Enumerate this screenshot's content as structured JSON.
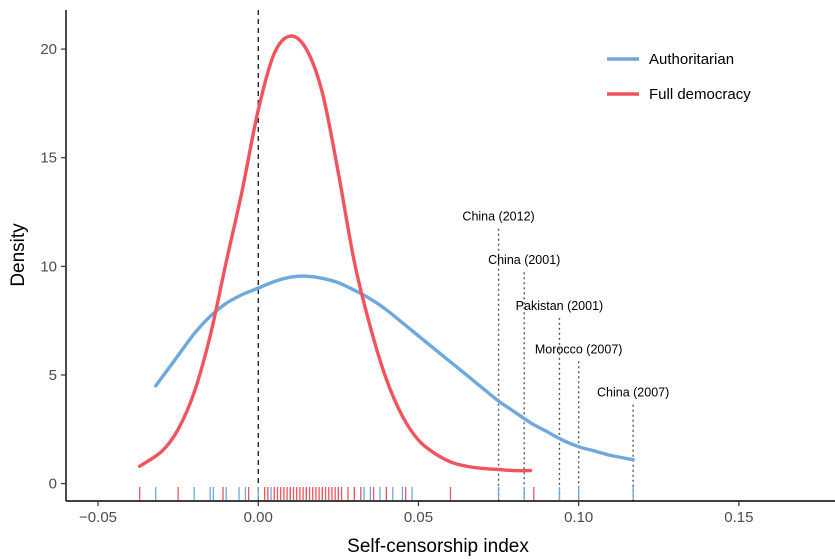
{
  "chart_data": {
    "type": "line",
    "xlabel": "Self-censorship index",
    "ylabel": "Density",
    "xlim": [
      -0.06,
      0.18
    ],
    "ylim": [
      -0.8,
      21.8
    ],
    "x_ticks": [
      -0.05,
      0.0,
      0.05,
      0.1,
      0.15
    ],
    "x_tick_labels": [
      "−0.05",
      "0.00",
      "0.05",
      "0.10",
      "0.15"
    ],
    "y_ticks": [
      0,
      5,
      10,
      15,
      20
    ],
    "y_tick_labels": [
      "0",
      "5",
      "10",
      "15",
      "20"
    ],
    "grid": false,
    "legend_position": "top-right",
    "reference_line": {
      "x": 0.0,
      "style": "dashed"
    },
    "series": [
      {
        "name": "Authoritarian",
        "color": "#6fa8dc",
        "x": [
          -0.032,
          -0.025,
          -0.02,
          -0.015,
          -0.01,
          -0.005,
          0.0,
          0.005,
          0.01,
          0.015,
          0.02,
          0.025,
          0.03,
          0.035,
          0.04,
          0.045,
          0.05,
          0.055,
          0.06,
          0.065,
          0.07,
          0.075,
          0.08,
          0.085,
          0.09,
          0.095,
          0.1,
          0.105,
          0.11,
          0.117
        ],
        "y": [
          4.5,
          5.9,
          6.9,
          7.7,
          8.3,
          8.7,
          9.0,
          9.3,
          9.5,
          9.55,
          9.45,
          9.25,
          8.9,
          8.5,
          8.0,
          7.4,
          6.8,
          6.2,
          5.6,
          5.0,
          4.4,
          3.8,
          3.3,
          2.8,
          2.4,
          2.0,
          1.7,
          1.5,
          1.3,
          1.1
        ]
      },
      {
        "name": "Full democracy",
        "color": "#f0545d",
        "x": [
          -0.037,
          -0.03,
          -0.025,
          -0.02,
          -0.015,
          -0.01,
          -0.005,
          0.0,
          0.005,
          0.01,
          0.015,
          0.02,
          0.025,
          0.03,
          0.035,
          0.04,
          0.045,
          0.05,
          0.055,
          0.06,
          0.065,
          0.07,
          0.075,
          0.08,
          0.085
        ],
        "y": [
          0.8,
          1.5,
          2.5,
          4.2,
          6.8,
          10.2,
          13.5,
          17.2,
          19.8,
          20.6,
          20.0,
          18.0,
          14.3,
          10.2,
          7.2,
          4.8,
          3.1,
          2.0,
          1.4,
          1.0,
          0.8,
          0.7,
          0.65,
          0.6,
          0.6
        ]
      }
    ],
    "rug": {
      "Authoritarian": [
        -0.032,
        -0.02,
        -0.015,
        -0.014,
        -0.01,
        -0.006,
        -0.004,
        0.0,
        0.004,
        0.01,
        0.015,
        0.02,
        0.025,
        0.03,
        0.033,
        0.035,
        0.038,
        0.04,
        0.042,
        0.045,
        0.048,
        0.075,
        0.083,
        0.094,
        0.1,
        0.117
      ],
      "Full democracy": [
        -0.037,
        -0.025,
        -0.011,
        -0.003,
        0.002,
        0.003,
        0.005,
        0.006,
        0.007,
        0.008,
        0.009,
        0.01,
        0.011,
        0.012,
        0.013,
        0.014,
        0.015,
        0.016,
        0.017,
        0.018,
        0.019,
        0.02,
        0.021,
        0.022,
        0.023,
        0.024,
        0.025,
        0.026,
        0.028,
        0.03,
        0.032,
        0.036,
        0.04,
        0.046,
        0.06,
        0.086
      ]
    },
    "annotations": [
      {
        "label": "China (2012)",
        "x": 0.075,
        "y_label": 12.1
      },
      {
        "label": "China (2001)",
        "x": 0.083,
        "y_label": 10.1
      },
      {
        "label": "Pakistan (2001)",
        "x": 0.094,
        "y_label": 8.0
      },
      {
        "label": "Morocco (2007)",
        "x": 0.1,
        "y_label": 6.0
      },
      {
        "label": "China (2007)",
        "x": 0.117,
        "y_label": 4.0
      }
    ]
  }
}
